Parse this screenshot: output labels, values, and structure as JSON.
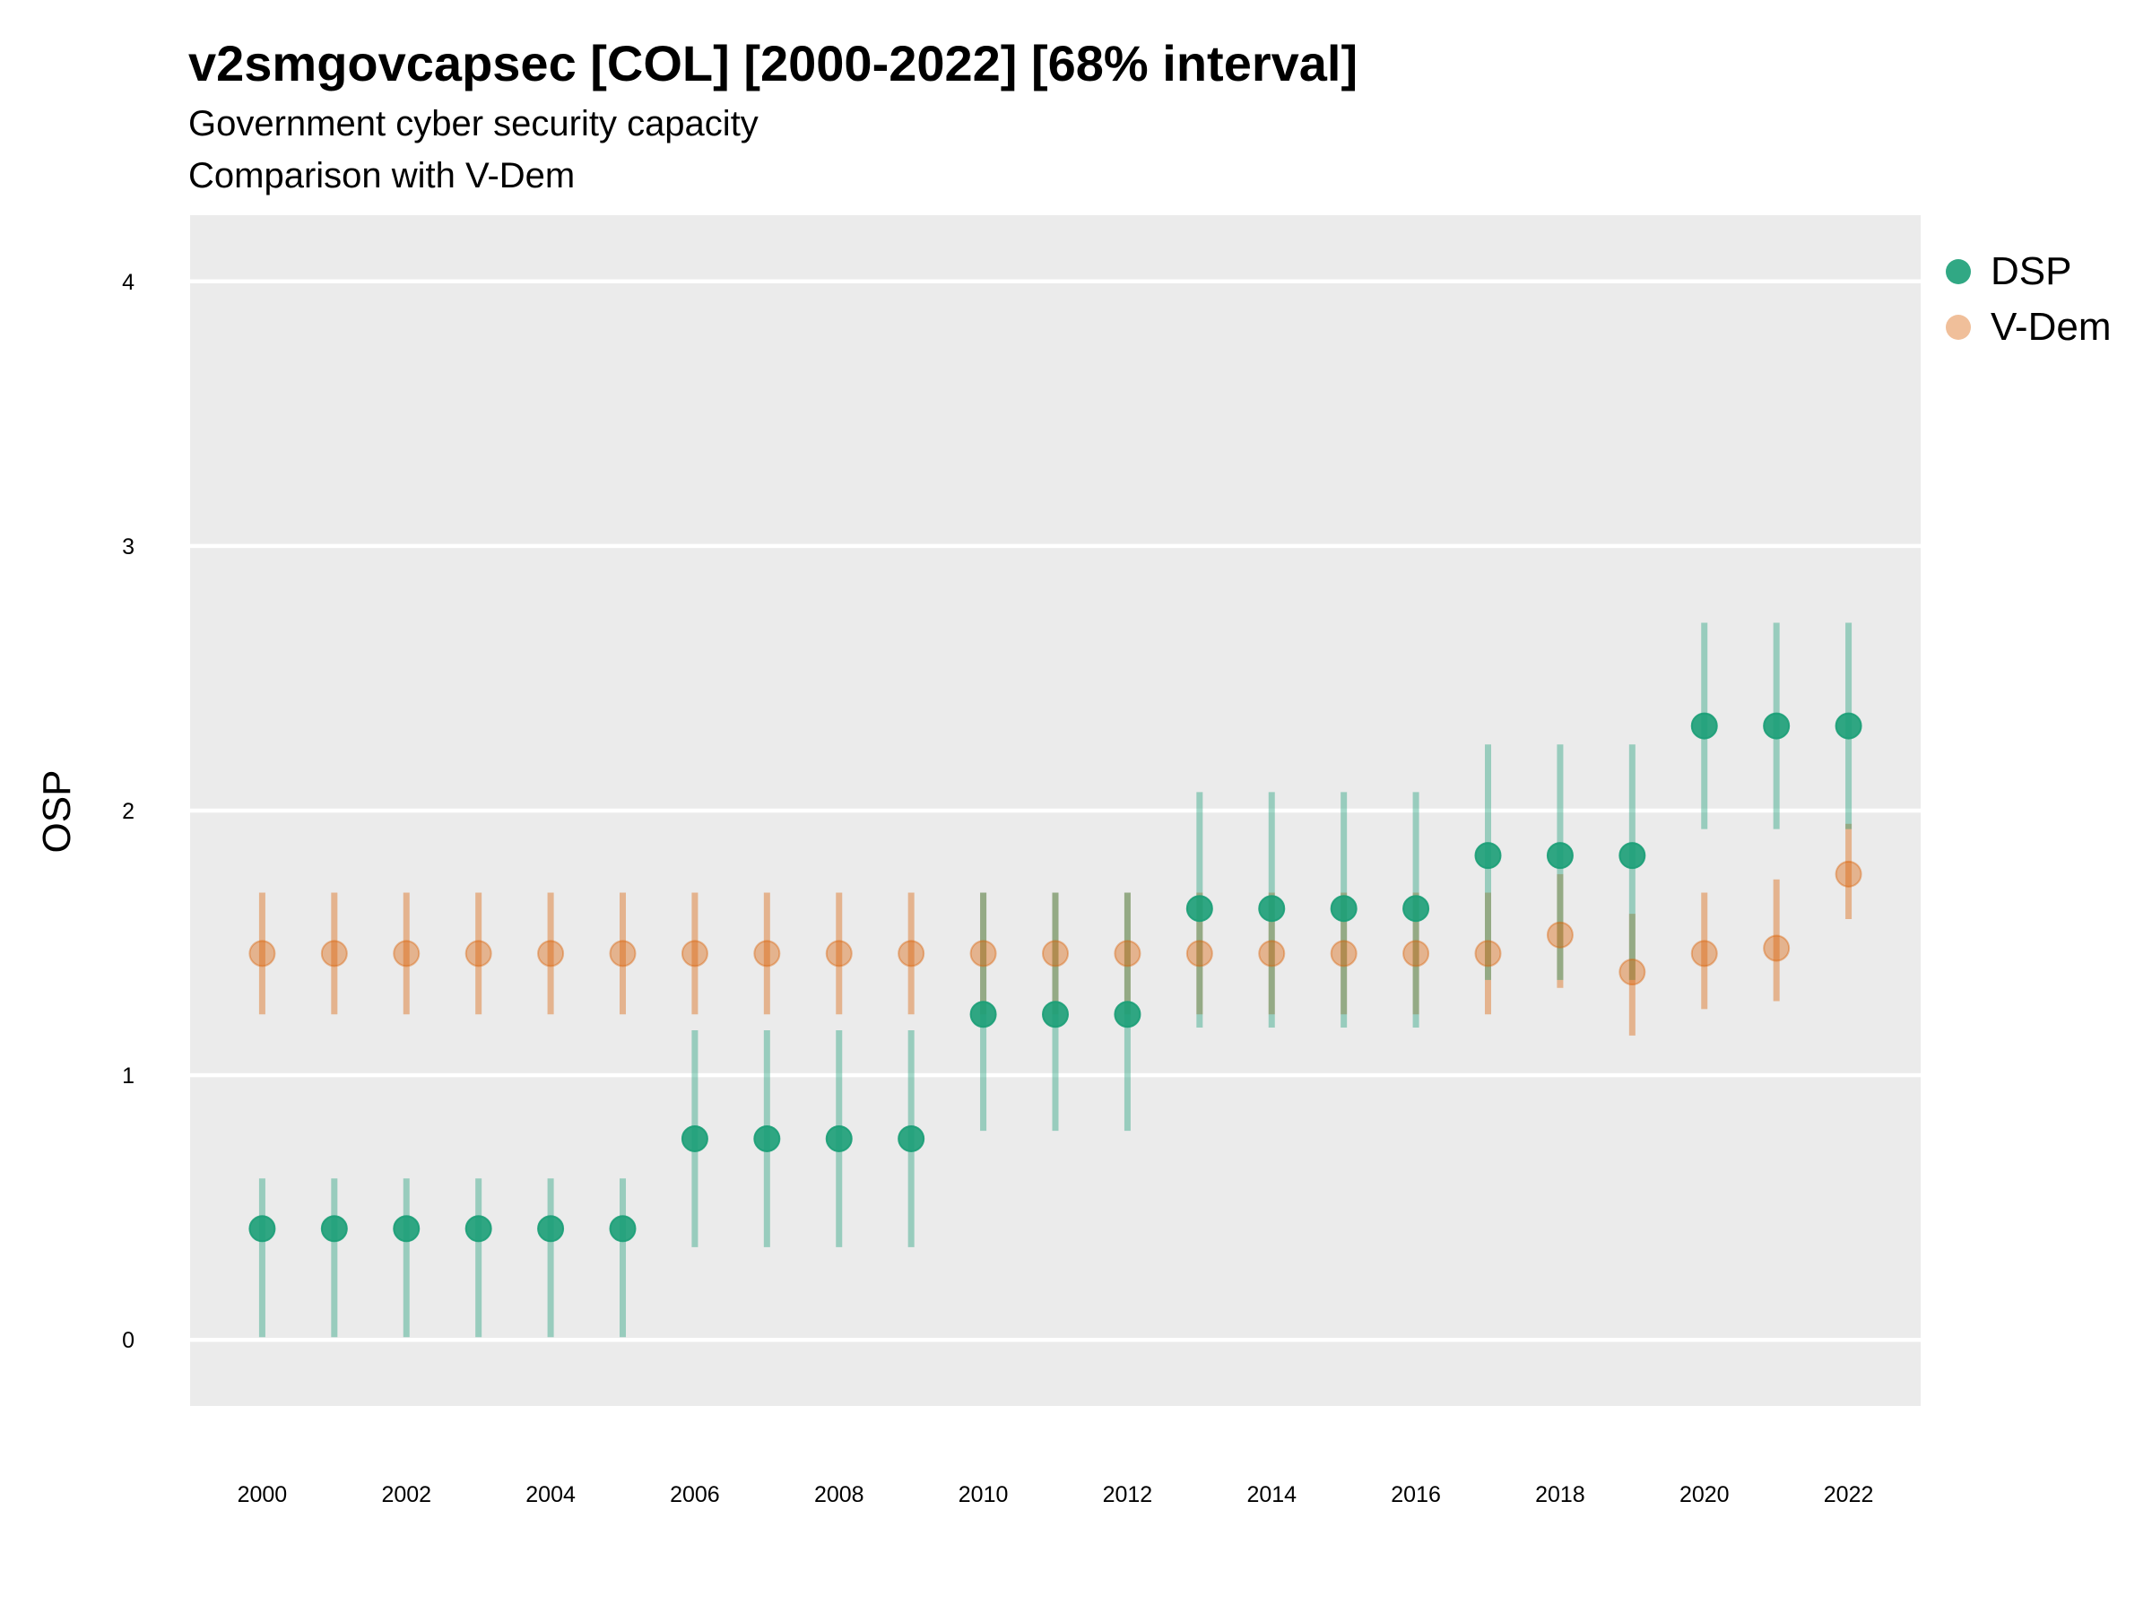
{
  "chart_data": {
    "type": "scatter",
    "title": "v2smgovcapsec [COL] [2000-2022] [68% interval]",
    "subtitle": "Government cyber security capacity",
    "caption_line": "Comparison with V-Dem",
    "xlabel": "",
    "ylabel": "OSP",
    "ylim": [
      -0.25,
      4.25
    ],
    "xlim": [
      1999,
      2023
    ],
    "yticks": [
      0,
      1,
      2,
      3,
      4
    ],
    "xticks": [
      2000,
      2002,
      2004,
      2006,
      2008,
      2010,
      2012,
      2014,
      2016,
      2018,
      2020,
      2022
    ],
    "grid": true,
    "legend_position": "right",
    "x": [
      2000,
      2001,
      2002,
      2003,
      2004,
      2005,
      2006,
      2007,
      2008,
      2009,
      2010,
      2011,
      2012,
      2013,
      2014,
      2015,
      2016,
      2017,
      2018,
      2019,
      2020,
      2021,
      2022
    ],
    "series": [
      {
        "name": "DSP",
        "color": "#1b9e77",
        "values": [
          0.42,
          0.42,
          0.42,
          0.42,
          0.42,
          0.42,
          0.76,
          0.76,
          0.76,
          0.76,
          1.23,
          1.23,
          1.23,
          1.63,
          1.63,
          1.63,
          1.63,
          1.83,
          1.83,
          1.83,
          2.32,
          2.32,
          2.32
        ],
        "lower": [
          0.01,
          0.01,
          0.01,
          0.01,
          0.01,
          0.01,
          0.35,
          0.35,
          0.35,
          0.35,
          0.79,
          0.79,
          0.79,
          1.18,
          1.18,
          1.18,
          1.18,
          1.36,
          1.36,
          1.36,
          1.93,
          1.93,
          1.93
        ],
        "upper": [
          0.61,
          0.61,
          0.61,
          0.61,
          0.61,
          0.61,
          1.17,
          1.17,
          1.17,
          1.17,
          1.69,
          1.69,
          1.69,
          2.07,
          2.07,
          2.07,
          2.07,
          2.25,
          2.25,
          2.25,
          2.71,
          2.71,
          2.71
        ]
      },
      {
        "name": "V-Dem",
        "color": "#d95f02",
        "values": [
          1.46,
          1.46,
          1.46,
          1.46,
          1.46,
          1.46,
          1.46,
          1.46,
          1.46,
          1.46,
          1.46,
          1.46,
          1.46,
          1.46,
          1.46,
          1.46,
          1.46,
          1.46,
          1.53,
          1.39,
          1.46,
          1.48,
          1.76
        ],
        "lower": [
          1.23,
          1.23,
          1.23,
          1.23,
          1.23,
          1.23,
          1.23,
          1.23,
          1.23,
          1.23,
          1.23,
          1.23,
          1.23,
          1.23,
          1.23,
          1.23,
          1.23,
          1.23,
          1.33,
          1.15,
          1.25,
          1.28,
          1.59
        ],
        "upper": [
          1.69,
          1.69,
          1.69,
          1.69,
          1.69,
          1.69,
          1.69,
          1.69,
          1.69,
          1.69,
          1.69,
          1.69,
          1.69,
          1.69,
          1.69,
          1.69,
          1.69,
          1.69,
          1.76,
          1.61,
          1.69,
          1.74,
          1.95
        ]
      }
    ]
  }
}
